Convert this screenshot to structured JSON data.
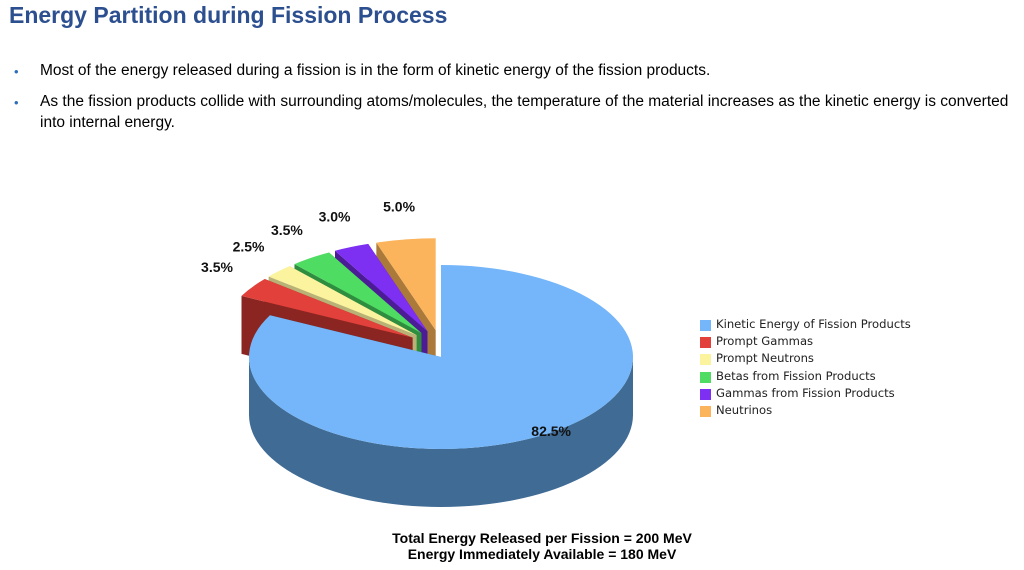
{
  "slide": {
    "title": "Energy Partition during Fission Process",
    "bullets": [
      "Most of the energy released during a fission is in the form of kinetic energy of the fission products.",
      "As the fission products collide with surrounding atoms/molecules, the temperature of the material increases as the kinetic energy is converted into internal energy."
    ],
    "footer": [
      "Total Energy Released per Fission = 200 MeV",
      "Energy Immediately Available = 180 MeV"
    ]
  },
  "chart_data": {
    "type": "pie",
    "style": "3d-exploded",
    "categories": [
      "Kinetic Energy of Fission Products",
      "Prompt Gammas",
      "Prompt Neutrons",
      "Betas from Fission Products",
      "Gammas from Fission Products",
      "Neutrinos"
    ],
    "values": [
      82.5,
      3.5,
      2.5,
      3.5,
      3.0,
      5.0
    ],
    "labels": [
      "82.5%",
      "3.5%",
      "2.5%",
      "3.5%",
      "3.0%",
      "5.0%"
    ],
    "colors": [
      "#74b6f9",
      "#e2403a",
      "#fbf39d",
      "#4fdc63",
      "#7d2ff2",
      "#fbb35c"
    ],
    "side_colors": [
      "#3f6b95",
      "#8a2521",
      "#b9b277",
      "#2f8d3f",
      "#4c1c96",
      "#ab7a3a"
    ],
    "legend_position": "right"
  }
}
